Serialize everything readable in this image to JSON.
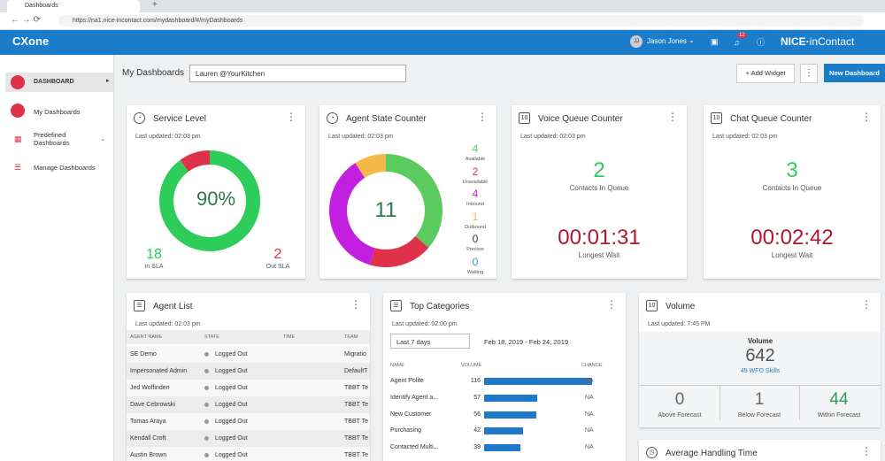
{
  "browser": {
    "tab_title": "Dashboards",
    "url": "https://na1.nice-incontact.com/mydashboard/#/myDashboards"
  },
  "header": {
    "logo": "CXone",
    "user": "Jason Jones",
    "user_initials": "JJ",
    "notifications": 12,
    "brand_a": "NICE",
    "brand_b": "inContact"
  },
  "sidebar": {
    "section": "DASHBOARD",
    "items": [
      "My Dashboards",
      "Predefined Dashboards",
      "Manage Dashboards"
    ]
  },
  "toolbar": {
    "title": "My Dashboards",
    "selector": "Lauren @YourKitchen",
    "add_widget": "+ Add Widget",
    "new_dashboard": "New Dashboard"
  },
  "service_level": {
    "title": "Service Level",
    "updated": "Last updated: 02:03 pm",
    "percent": "90%",
    "in_sla": 18,
    "in_sla_label": "In SLA",
    "out_sla": 2,
    "out_sla_label": "Out SLA",
    "in_color": "#2ecc5a",
    "out_color": "#e0314b"
  },
  "agent_state": {
    "title": "Agent State Counter",
    "updated": "Last updated: 02:03 pm",
    "total": 11,
    "states": [
      {
        "label": "Available",
        "count": 4,
        "color": "#5ccb5f"
      },
      {
        "label": "Unavailable",
        "count": 2,
        "color": "#e0314b"
      },
      {
        "label": "Inbound",
        "count": 4,
        "color": "#c21fe0"
      },
      {
        "label": "Outbound",
        "count": 1,
        "color": "#f5b94a"
      },
      {
        "label": "Preview",
        "count": 0,
        "color": "#333333"
      },
      {
        "label": "Waiting",
        "count": 0,
        "color": "#3a9ad9"
      }
    ]
  },
  "voice_queue": {
    "title": "Voice Queue Counter",
    "updated": "Last updated: 02:03 pm",
    "contacts": 2,
    "contacts_label": "Contacts In Queue",
    "wait": "00:01:31",
    "wait_label": "Longest Wait"
  },
  "chat_queue": {
    "title": "Chat Queue Counter",
    "updated": "Last updated: 02:03 pm",
    "contacts": 3,
    "contacts_label": "Contacts In Queue",
    "wait": "00:02:42",
    "wait_label": "Longest Wait"
  },
  "agent_list": {
    "title": "Agent List",
    "updated": "Last updated: 02:03 pm",
    "columns": [
      "AGENT NAME",
      "STATE",
      "TIME",
      "TEAM"
    ],
    "rows": [
      {
        "name": "SE Demo",
        "state": "Logged Out",
        "team": "Migratio"
      },
      {
        "name": "Impersonated Admin",
        "state": "Logged Out",
        "team": "DefaultT"
      },
      {
        "name": "Jed Woffinden",
        "state": "Logged Out",
        "team": "TBBT Te"
      },
      {
        "name": "Dave Cebrowski",
        "state": "Logged Out",
        "team": "TBBT Te"
      },
      {
        "name": "Tomas Araya",
        "state": "Logged Out",
        "team": "TBBT Te"
      },
      {
        "name": "Kendall Croft",
        "state": "Logged Out",
        "team": "TBBT Te"
      },
      {
        "name": "Austin Brown",
        "state": "Logged Out",
        "team": "TBBT Te"
      }
    ]
  },
  "top_categories": {
    "title": "Top Categories",
    "updated": "Last updated: 02:00 pm",
    "range": "Last 7 days",
    "dates": "Feb 18, 2019 - Feb 24, 2019",
    "columns": [
      "NAME",
      "VOLUME",
      "CHANGE"
    ],
    "bar_color": "#1f78c8",
    "rows": [
      {
        "name": "Agent Polite",
        "volume": 116,
        "change": "NA"
      },
      {
        "name": "Identify Agent a...",
        "volume": 57,
        "change": "NA"
      },
      {
        "name": "New Customer",
        "volume": 56,
        "change": "NA"
      },
      {
        "name": "Purchasing",
        "volume": 42,
        "change": "NA"
      },
      {
        "name": "Contacted Multi...",
        "volume": 39,
        "change": "NA"
      }
    ]
  },
  "volume": {
    "title": "Volume",
    "updated": "Last updated: 7:45 PM",
    "label": "Volume",
    "total": 642,
    "skills": "45 WFO Skills",
    "stats": [
      {
        "value": 0,
        "label": "Above Forecast",
        "color": "#666666"
      },
      {
        "value": 1,
        "label": "Below Forecast",
        "color": "#666666"
      },
      {
        "value": 44,
        "label": "Within Forecast",
        "color": "#2e9a5a"
      }
    ]
  },
  "aht": {
    "title": "Average Handling Time"
  }
}
